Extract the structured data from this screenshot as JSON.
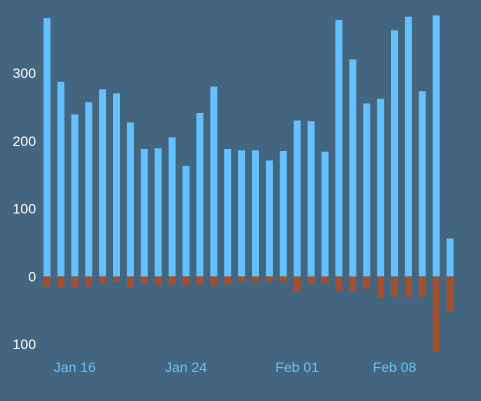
{
  "chart_data": {
    "type": "bar",
    "title": "",
    "xlabel": "",
    "ylabel": "",
    "colors": {
      "background": "#43657f",
      "positive": "#64c1ff",
      "negative": "#a24f2e",
      "y_tick_text": "#ffffff",
      "x_tick_text": "#64c1ff"
    },
    "ylim": [
      -110,
      390
    ],
    "grid": false,
    "legend": "none",
    "y_ticks": [
      {
        "value": 300,
        "label": "300"
      },
      {
        "value": 200,
        "label": "200"
      },
      {
        "value": 100,
        "label": "100"
      },
      {
        "value": 0,
        "label": "0"
      },
      {
        "value": -100,
        "label": "100"
      }
    ],
    "x_ticks": [
      {
        "date": "2024-01-16",
        "label": "Jan 16"
      },
      {
        "date": "2024-01-24",
        "label": "Jan 24"
      },
      {
        "date": "2024-02-01",
        "label": "Feb 01"
      },
      {
        "date": "2024-02-08",
        "label": "Feb 08"
      }
    ],
    "dates": [
      "2024-01-14",
      "2024-01-15",
      "2024-01-16",
      "2024-01-17",
      "2024-01-18",
      "2024-01-19",
      "2024-01-20",
      "2024-01-21",
      "2024-01-22",
      "2024-01-23",
      "2024-01-24",
      "2024-01-25",
      "2024-01-26",
      "2024-01-27",
      "2024-01-28",
      "2024-01-29",
      "2024-01-30",
      "2024-01-31",
      "2024-02-01",
      "2024-02-02",
      "2024-02-03",
      "2024-02-04",
      "2024-02-05",
      "2024-02-06",
      "2024-02-07",
      "2024-02-08",
      "2024-02-09",
      "2024-02-10",
      "2024-02-11",
      "2024-02-12",
      "2024-02-13"
    ],
    "series": [
      {
        "values": [
          381,
          287,
          239,
          257,
          276,
          270,
          227,
          188,
          189,
          205,
          163,
          241,
          280,
          188,
          186,
          186,
          171,
          185,
          230,
          229,
          184,
          378,
          320,
          255,
          262,
          363,
          383,
          273,
          385,
          56,
          0
        ]
      },
      {
        "values": [
          -15,
          -17,
          -17,
          -15,
          -10,
          -8,
          -17,
          -11,
          -13,
          -12,
          -13,
          -12,
          -13,
          -12,
          -8,
          -8,
          -8,
          -7,
          -23,
          -11,
          -11,
          -22,
          -23,
          -18,
          -32,
          -30,
          -32,
          -30,
          -110,
          -52,
          0
        ]
      }
    ]
  }
}
